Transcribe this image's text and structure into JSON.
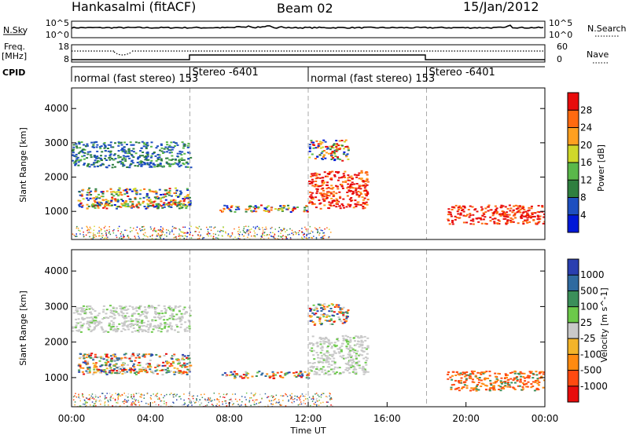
{
  "header": {
    "station": "Hankasalmi (fitACF)",
    "beam": "Beam 02",
    "date": "15/Jan/2012"
  },
  "top_panel": {
    "nsky_label": "N.Sky",
    "nsky_ticks": [
      "10^5",
      "10^0"
    ],
    "nsearch_label": "N.Search",
    "nsearch_ticks": [
      "10^5",
      "10^0"
    ],
    "freq_label_1": "Freq.",
    "freq_label_2": "[MHz]",
    "freq_ticks": [
      "18",
      "8"
    ],
    "nave_label": "Nave",
    "nave_ticks": [
      "60",
      "0"
    ],
    "cpid_label": "CPID",
    "cpid_modes": [
      {
        "label": "normal (fast stereo) 153",
        "start_hr": 0
      },
      {
        "label": "Stereo -6401",
        "start_hr": 6
      },
      {
        "label": "normal (fast stereo) 153",
        "start_hr": 12
      },
      {
        "label": "Stereo -6401",
        "start_hr": 18
      }
    ]
  },
  "axes": {
    "ylabel": "Slant Range [km]",
    "xlabel": "Time UT",
    "x_ticks": [
      "00:00",
      "04:00",
      "08:00",
      "12:00",
      "16:00",
      "20:00",
      "00:00"
    ],
    "y_ticks": [
      "1000",
      "2000",
      "3000",
      "4000"
    ]
  },
  "power_colorbar": {
    "label": "Power [dB]",
    "ticks": [
      "4",
      "8",
      "12",
      "16",
      "20",
      "24",
      "28"
    ],
    "colors": [
      "#0018d8",
      "#1e4fc0",
      "#2f7f3f",
      "#5ab84a",
      "#cfd82a",
      "#ffa020",
      "#ff6a10",
      "#e80c0c"
    ]
  },
  "velocity_colorbar": {
    "label": "Velocity [m s^-1]",
    "ticks": [
      "1000",
      "500",
      "100",
      "25",
      "-25",
      "-100",
      "-500",
      "-1000"
    ],
    "colors": [
      "#2a3fb0",
      "#2f6aa0",
      "#3b8f5a",
      "#6cc94a",
      "#c9c9c9",
      "#f3b42a",
      "#ff8a10",
      "#ff4a10",
      "#e80c0c"
    ]
  },
  "chart_data": {
    "type": "heatmap",
    "title": "Hankasalmi (fitACF) Beam 02 15/Jan/2012",
    "xlabel": "Time UT",
    "ylabel": "Slant Range [km]",
    "xlim_hours": [
      0,
      24
    ],
    "ylim_km": [
      180,
      4600
    ],
    "mode_boundaries_hours": [
      6,
      12,
      18
    ],
    "echo_regions": [
      {
        "name": "F-region scatter 00-06",
        "t": [
          0,
          6
        ],
        "range_km": [
          2300,
          3050
        ]
      },
      {
        "name": "band 00-06",
        "t": [
          0.3,
          6
        ],
        "range_km": [
          1100,
          1700
        ]
      },
      {
        "name": "near range 00-06",
        "t": [
          1,
          6
        ],
        "range_km": [
          1150,
          1250
        ]
      },
      {
        "name": "band 06-12",
        "t": [
          7.5,
          12
        ],
        "range_km": [
          1000,
          1200
        ]
      },
      {
        "name": "strong echoes 12-15",
        "t": [
          12,
          15
        ],
        "range_km": [
          1100,
          2200
        ]
      },
      {
        "name": "far range 12-14",
        "t": [
          12,
          14
        ],
        "range_km": [
          2500,
          3100
        ]
      },
      {
        "name": "far band 19-24",
        "t": [
          19,
          24
        ],
        "range_km": [
          650,
          1200
        ]
      }
    ]
  }
}
